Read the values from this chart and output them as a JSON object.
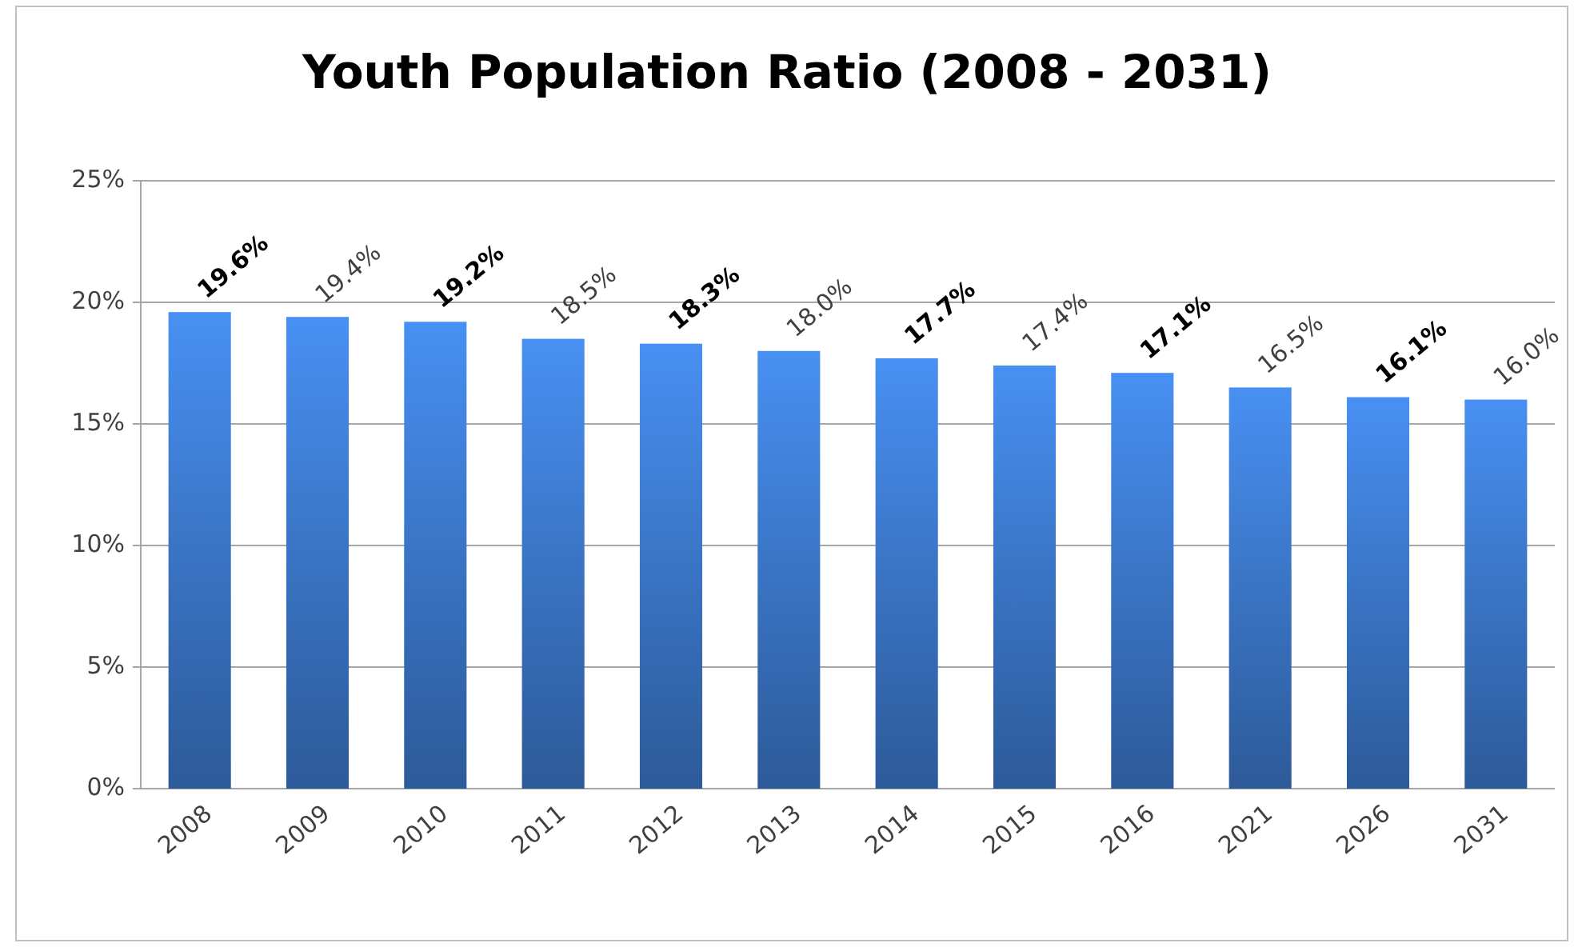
{
  "chart_data": {
    "type": "bar",
    "title": "Youth Population Ratio (2008 - 2031)",
    "categories": [
      "2008",
      "2009",
      "2010",
      "2011",
      "2012",
      "2013",
      "2014",
      "2015",
      "2016",
      "2021",
      "2026",
      "2031"
    ],
    "values": [
      19.6,
      19.4,
      19.2,
      18.5,
      18.3,
      18.0,
      17.7,
      17.4,
      17.1,
      16.5,
      16.1,
      16.0
    ],
    "value_labels": [
      "19.6%",
      "19.4%",
      "19.2%",
      "18.5%",
      "18.3%",
      "18.0%",
      "17.7%",
      "17.4%",
      "17.1%",
      "16.5%",
      "16.1%",
      "16.0%"
    ],
    "color": "#3a74c4",
    "ylim": [
      0,
      25
    ],
    "yticks": [
      {
        "value": 0,
        "label": "0%"
      },
      {
        "value": 5,
        "label": "5%"
      },
      {
        "value": 10,
        "label": "10%"
      },
      {
        "value": 15,
        "label": "15%"
      },
      {
        "value": 20,
        "label": "20%"
      },
      {
        "value": 25,
        "label": "25%"
      }
    ],
    "grid": "y"
  }
}
